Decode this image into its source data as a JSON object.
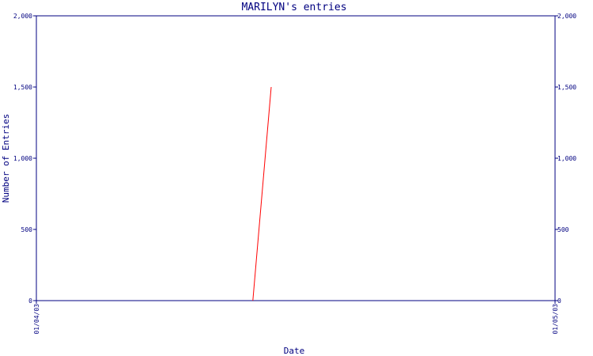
{
  "chart_data": {
    "type": "line",
    "title": "MARILYN's entries",
    "xlabel": "Date",
    "ylabel": "Number of Entries",
    "x_tick_labels": [
      "01/04/03",
      "01/05/03"
    ],
    "xlim": [
      "01/04/03",
      "01/05/03"
    ],
    "ylim": [
      0,
      2000
    ],
    "y_ticks": [
      0,
      500,
      1000,
      1500,
      2000
    ],
    "y_tick_labels": [
      "0",
      "500",
      "1,000",
      "1,500",
      "2,000"
    ],
    "y_axis_right": true,
    "grid": false,
    "series": [
      {
        "color": "#ff0000",
        "points": [
          {
            "x": "01/04/03 10:01",
            "y": 0
          },
          {
            "x": "01/04/03 10:52",
            "y": 1500
          }
        ]
      }
    ]
  }
}
